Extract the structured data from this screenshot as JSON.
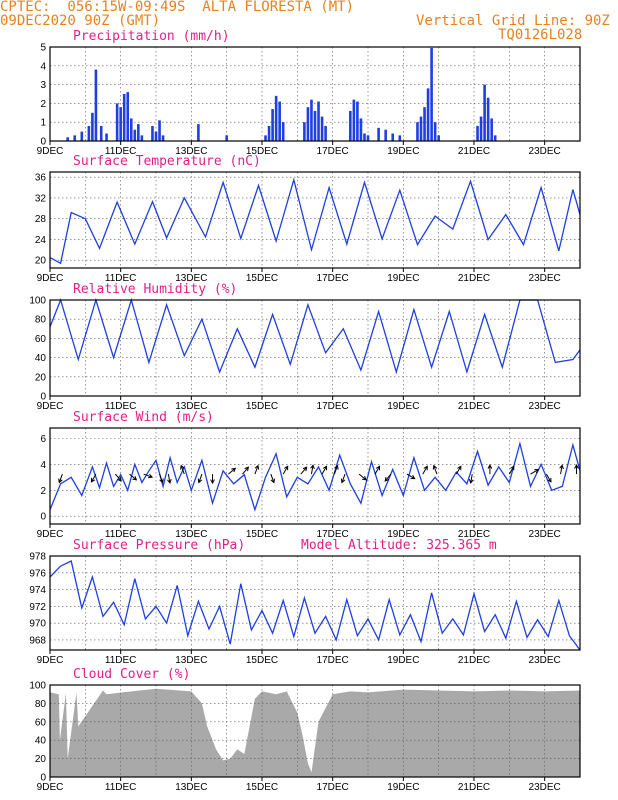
{
  "header": {
    "line1": "CPTEC:  056:15W-09:49S  ALTA FLORESTA (MT)",
    "line2": "09DEC2020 90Z (GMT)",
    "right1": "Vertical Grid Line: 90Z",
    "right2": "TQ0126L028"
  },
  "colors": {
    "title": "#e0208a",
    "header": "#e8821e",
    "series": "#1f3fe0",
    "bars": "#1f3fe0",
    "cloud": "#a9a9a9"
  },
  "date_labels": [
    "9DEC",
    "11DEC",
    "13DEC",
    "15DEC",
    "17DEC",
    "19DEC",
    "21DEC",
    "23DEC"
  ],
  "chart_data": [
    {
      "id": "precip",
      "type": "bar",
      "title": "Precipitation (mm/h)",
      "ylim": [
        0,
        5
      ],
      "yticks": [
        0,
        1,
        2,
        3,
        4,
        5
      ],
      "x_unit": "days since 9DEC",
      "x": [
        0.5,
        0.7,
        0.9,
        1.1,
        1.2,
        1.3,
        1.45,
        1.6,
        1.9,
        2.0,
        2.1,
        2.2,
        2.3,
        2.4,
        2.5,
        2.6,
        2.9,
        3.0,
        3.1,
        3.2,
        4.2,
        5.0,
        6.1,
        6.2,
        6.3,
        6.4,
        6.5,
        6.6,
        7.2,
        7.3,
        7.4,
        7.5,
        7.6,
        7.7,
        7.8,
        8.5,
        8.6,
        8.7,
        8.8,
        8.9,
        9.0,
        9.3,
        9.5,
        9.7,
        9.9,
        10.4,
        10.5,
        10.6,
        10.7,
        10.8,
        10.9,
        11.0,
        12.1,
        12.2,
        12.3,
        12.4,
        12.5,
        12.6
      ],
      "values": [
        0.2,
        0.3,
        0.5,
        0.8,
        1.5,
        3.8,
        0.8,
        0.4,
        2.0,
        1.8,
        2.5,
        2.6,
        1.2,
        0.6,
        0.9,
        0.3,
        0.8,
        0.5,
        1.1,
        0.3,
        0.9,
        0.3,
        0.3,
        0.8,
        1.7,
        2.4,
        2.1,
        1.0,
        1.0,
        1.8,
        2.2,
        1.6,
        2.1,
        1.3,
        0.8,
        1.6,
        2.2,
        2.1,
        1.2,
        0.4,
        0.3,
        0.7,
        0.6,
        0.4,
        0.3,
        1.0,
        1.3,
        1.8,
        2.8,
        4.95,
        1.0,
        0.3,
        0.8,
        1.3,
        3.0,
        2.3,
        1.2,
        0.3
      ]
    },
    {
      "id": "temp",
      "type": "line",
      "title": "Surface Temperature (nC)",
      "ylim": [
        18.5,
        37
      ],
      "yticks": [
        20,
        24,
        28,
        32,
        36
      ],
      "x": [
        0,
        0.3,
        0.6,
        1.0,
        1.4,
        1.9,
        2.4,
        2.9,
        3.3,
        3.8,
        4.4,
        4.9,
        5.4,
        5.9,
        6.4,
        6.9,
        7.4,
        7.9,
        8.4,
        8.9,
        9.4,
        9.9,
        10.4,
        10.9,
        11.4,
        11.9,
        12.4,
        12.9,
        13.4,
        13.9,
        14.4,
        14.8,
        15.0
      ],
      "values": [
        20.5,
        19.4,
        29.2,
        28.0,
        22.3,
        31.2,
        23.1,
        31.3,
        24.3,
        32.0,
        24.5,
        35.0,
        24.2,
        34.4,
        23.7,
        35.5,
        22.0,
        34.0,
        23.1,
        35.0,
        24.1,
        33.5,
        23.0,
        28.5,
        26.0,
        35.2,
        24.0,
        28.8,
        23.0,
        34.0,
        21.8,
        33.6,
        28.8
      ]
    },
    {
      "id": "rh",
      "type": "line",
      "title": "Relative Humidity (%)",
      "ylim": [
        0,
        100
      ],
      "yticks": [
        0,
        20,
        40,
        60,
        80,
        100
      ],
      "x": [
        0,
        0.3,
        0.8,
        1.3,
        1.8,
        2.3,
        2.8,
        3.3,
        3.8,
        4.3,
        4.8,
        5.3,
        5.8,
        6.3,
        6.8,
        7.3,
        7.8,
        8.3,
        8.8,
        9.3,
        9.8,
        10.3,
        10.8,
        11.3,
        11.8,
        12.3,
        12.8,
        13.3,
        13.8,
        14.3,
        14.8,
        15.0
      ],
      "values": [
        72,
        100,
        38,
        100,
        40,
        100,
        35,
        95,
        42,
        80,
        25,
        70,
        30,
        85,
        33,
        95,
        45,
        70,
        27,
        88,
        25,
        90,
        30,
        88,
        25,
        85,
        30,
        100,
        100,
        35,
        38,
        48
      ]
    },
    {
      "id": "wind",
      "type": "line",
      "title": "Surface Wind (m/s)",
      "ylim": [
        -0.6,
        6.8
      ],
      "yticks": [
        0,
        2,
        4,
        6
      ],
      "x": [
        0,
        0.3,
        0.6,
        0.9,
        1.2,
        1.4,
        1.6,
        1.8,
        2.0,
        2.2,
        2.4,
        2.6,
        2.8,
        3.0,
        3.2,
        3.4,
        3.6,
        3.8,
        4.0,
        4.3,
        4.6,
        4.9,
        5.2,
        5.5,
        5.8,
        6.1,
        6.4,
        6.7,
        7.0,
        7.3,
        7.6,
        7.9,
        8.2,
        8.5,
        8.8,
        9.1,
        9.4,
        9.7,
        10.0,
        10.3,
        10.6,
        10.9,
        11.2,
        11.5,
        11.8,
        12.1,
        12.4,
        12.7,
        13.0,
        13.3,
        13.6,
        13.9,
        14.2,
        14.5,
        14.8,
        15.0
      ],
      "values": [
        0.5,
        2.5,
        3.0,
        1.6,
        3.8,
        2.2,
        4.1,
        2.3,
        3.2,
        2.0,
        4.0,
        2.6,
        3.5,
        4.3,
        2.3,
        4.5,
        2.6,
        3.8,
        2.0,
        4.3,
        1.0,
        3.5,
        2.5,
        3.2,
        0.5,
        3.0,
        4.8,
        1.5,
        3.0,
        2.5,
        3.8,
        2.0,
        4.7,
        2.5,
        1.0,
        4.2,
        1.6,
        3.6,
        1.6,
        4.5,
        2.0,
        3.0,
        2.0,
        3.4,
        2.5,
        5.0,
        2.4,
        3.8,
        2.6,
        5.6,
        2.3,
        4.0,
        2.0,
        2.3,
        5.5,
        3.5
      ],
      "barbs": [
        {
          "x": 0.35,
          "dir": 200,
          "len": 1
        },
        {
          "x": 1.3,
          "dir": 210,
          "len": 1
        },
        {
          "x": 1.85,
          "dir": 140,
          "len": 1
        },
        {
          "x": 2.25,
          "dir": 130,
          "len": 1
        },
        {
          "x": 2.65,
          "dir": 110,
          "len": 1
        },
        {
          "x": 3.1,
          "dir": 160,
          "len": 1
        },
        {
          "x": 3.35,
          "dir": 170,
          "len": 1
        },
        {
          "x": 3.8,
          "dir": 340,
          "len": 1
        },
        {
          "x": 4.3,
          "dir": 200,
          "len": 1
        },
        {
          "x": 4.6,
          "dir": 180,
          "len": 1
        },
        {
          "x": 5.05,
          "dir": 50,
          "len": 1
        },
        {
          "x": 5.45,
          "dir": 40,
          "len": 1
        },
        {
          "x": 5.8,
          "dir": 20,
          "len": 1
        },
        {
          "x": 6.25,
          "dir": 160,
          "len": 1
        },
        {
          "x": 6.6,
          "dir": 30,
          "len": 1
        },
        {
          "x": 7.1,
          "dir": 40,
          "len": 1
        },
        {
          "x": 7.4,
          "dir": 10,
          "len": 1
        },
        {
          "x": 7.7,
          "dir": 30,
          "len": 1
        },
        {
          "x": 8.05,
          "dir": 20,
          "len": 1
        },
        {
          "x": 8.35,
          "dir": 200,
          "len": 1
        },
        {
          "x": 8.75,
          "dir": 130,
          "len": 1
        },
        {
          "x": 9.2,
          "dir": 30,
          "len": 1
        },
        {
          "x": 9.65,
          "dir": 220,
          "len": 1
        },
        {
          "x": 10.1,
          "dir": 120,
          "len": 1
        },
        {
          "x": 10.55,
          "dir": 30,
          "len": 1
        },
        {
          "x": 10.95,
          "dir": 340,
          "len": 1
        },
        {
          "x": 11.5,
          "dir": 30,
          "len": 1
        },
        {
          "x": 11.95,
          "dir": 190,
          "len": 1
        },
        {
          "x": 12.45,
          "dir": 0,
          "len": 1
        },
        {
          "x": 13.0,
          "dir": 30,
          "len": 1
        },
        {
          "x": 13.6,
          "dir": 60,
          "len": 1
        },
        {
          "x": 14.05,
          "dir": 150,
          "len": 1
        },
        {
          "x": 14.45,
          "dir": 10,
          "len": 1
        },
        {
          "x": 14.9,
          "dir": 0,
          "len": 1
        }
      ]
    },
    {
      "id": "pres",
      "type": "line",
      "title": "Surface Pressure (hPa)",
      "annotation": "Model Altitude: 325.365 m",
      "ylim": [
        966.8,
        978
      ],
      "yticks": [
        968,
        970,
        972,
        974,
        976,
        978
      ],
      "x": [
        0,
        0.3,
        0.6,
        0.9,
        1.2,
        1.5,
        1.8,
        2.1,
        2.4,
        2.7,
        3.0,
        3.3,
        3.6,
        3.9,
        4.2,
        4.5,
        4.8,
        5.1,
        5.4,
        5.7,
        6.0,
        6.3,
        6.6,
        6.9,
        7.2,
        7.5,
        7.8,
        8.1,
        8.4,
        8.7,
        9.0,
        9.3,
        9.6,
        9.9,
        10.2,
        10.5,
        10.8,
        11.1,
        11.4,
        11.7,
        12.0,
        12.3,
        12.6,
        12.9,
        13.2,
        13.5,
        13.8,
        14.1,
        14.4,
        14.7,
        15.0
      ],
      "values": [
        975.5,
        976.8,
        977.4,
        971.8,
        975.5,
        970.8,
        972.5,
        969.8,
        975.3,
        970.5,
        972.0,
        970.0,
        974.5,
        968.5,
        972.6,
        969.3,
        972.0,
        967.5,
        974.7,
        969.2,
        971.5,
        968.8,
        972.7,
        968.4,
        973.0,
        968.8,
        970.8,
        968.0,
        972.8,
        968.5,
        970.5,
        968.0,
        972.8,
        968.6,
        971.0,
        967.8,
        973.6,
        968.8,
        970.5,
        968.6,
        973.5,
        969.0,
        971.0,
        968.2,
        972.6,
        968.3,
        970.4,
        968.4,
        972.7,
        968.5,
        966.8
      ]
    },
    {
      "id": "cloud",
      "type": "area",
      "title": "Cloud Cover (%)",
      "ylim": [
        0,
        100
      ],
      "yticks": [
        0,
        20,
        40,
        60,
        80,
        100
      ],
      "x": [
        0,
        0.25,
        0.28,
        0.45,
        0.5,
        0.75,
        0.8,
        1.5,
        1.6,
        3.0,
        4.0,
        4.3,
        4.45,
        4.55,
        4.7,
        4.9,
        5.1,
        5.3,
        5.5,
        5.65,
        5.8,
        6.0,
        6.4,
        6.7,
        7.0,
        7.15,
        7.3,
        7.4,
        7.6,
        8.0,
        8.5,
        9.0,
        10.0,
        11.0,
        12.0,
        13.0,
        14.0,
        15.0
      ],
      "values": [
        92,
        90,
        40,
        91,
        20,
        92,
        55,
        94,
        90,
        96,
        93,
        80,
        55,
        45,
        30,
        18,
        20,
        30,
        25,
        55,
        85,
        93,
        90,
        93,
        70,
        45,
        15,
        5,
        60,
        90,
        93,
        92,
        95,
        94,
        93,
        94,
        93,
        94
      ]
    }
  ]
}
